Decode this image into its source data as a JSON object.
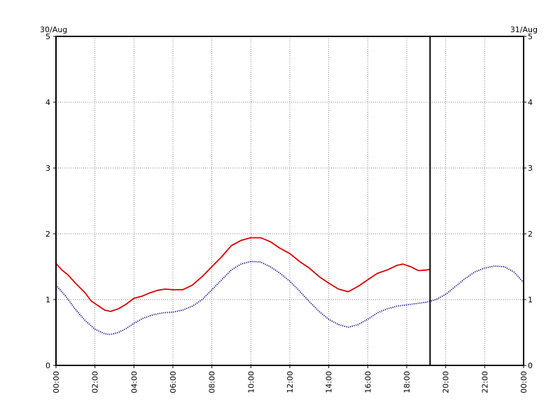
{
  "chart_data": {
    "type": "line",
    "title": "",
    "xlabel": "",
    "ylabel": "",
    "date_left": "30/Aug",
    "date_right": "31/Aug",
    "x_tick_labels": [
      "00:00",
      "02:00",
      "04:00",
      "06:00",
      "08:00",
      "10:00",
      "12:00",
      "14:00",
      "16:00",
      "18:00",
      "20:00",
      "22:00",
      "00:00"
    ],
    "y_tick_labels": [
      "0",
      "1",
      "2",
      "3",
      "4",
      "5"
    ],
    "xlim": [
      0,
      24
    ],
    "ylim": [
      0,
      5
    ],
    "grid": true,
    "current_time_marker": 19.2,
    "series": [
      {
        "color": "#dd0000",
        "style": "solid",
        "points": [
          [
            0.0,
            1.55
          ],
          [
            0.3,
            1.45
          ],
          [
            0.6,
            1.38
          ],
          [
            1.0,
            1.25
          ],
          [
            1.5,
            1.1
          ],
          [
            1.8,
            0.98
          ],
          [
            2.2,
            0.9
          ],
          [
            2.5,
            0.84
          ],
          [
            2.8,
            0.82
          ],
          [
            3.2,
            0.86
          ],
          [
            3.6,
            0.93
          ],
          [
            4.0,
            1.02
          ],
          [
            4.4,
            1.05
          ],
          [
            4.8,
            1.1
          ],
          [
            5.2,
            1.14
          ],
          [
            5.6,
            1.16
          ],
          [
            6.0,
            1.15
          ],
          [
            6.5,
            1.15
          ],
          [
            7.0,
            1.22
          ],
          [
            7.5,
            1.35
          ],
          [
            8.0,
            1.5
          ],
          [
            8.5,
            1.65
          ],
          [
            9.0,
            1.82
          ],
          [
            9.5,
            1.9
          ],
          [
            10.0,
            1.94
          ],
          [
            10.5,
            1.94
          ],
          [
            11.0,
            1.88
          ],
          [
            11.5,
            1.78
          ],
          [
            12.0,
            1.7
          ],
          [
            12.5,
            1.58
          ],
          [
            13.0,
            1.48
          ],
          [
            13.5,
            1.35
          ],
          [
            14.0,
            1.25
          ],
          [
            14.5,
            1.16
          ],
          [
            15.0,
            1.12
          ],
          [
            15.5,
            1.2
          ],
          [
            16.0,
            1.3
          ],
          [
            16.5,
            1.4
          ],
          [
            17.0,
            1.45
          ],
          [
            17.5,
            1.52
          ],
          [
            17.8,
            1.54
          ],
          [
            18.2,
            1.5
          ],
          [
            18.6,
            1.44
          ],
          [
            19.0,
            1.45
          ],
          [
            19.2,
            1.46
          ]
        ]
      },
      {
        "color": "#00008b",
        "style": "dotted",
        "points": [
          [
            0.0,
            1.22
          ],
          [
            0.5,
            1.05
          ],
          [
            1.0,
            0.85
          ],
          [
            1.5,
            0.68
          ],
          [
            2.0,
            0.55
          ],
          [
            2.5,
            0.48
          ],
          [
            2.8,
            0.47
          ],
          [
            3.2,
            0.5
          ],
          [
            3.6,
            0.56
          ],
          [
            4.0,
            0.64
          ],
          [
            4.5,
            0.72
          ],
          [
            5.0,
            0.77
          ],
          [
            5.5,
            0.8
          ],
          [
            6.0,
            0.81
          ],
          [
            6.5,
            0.84
          ],
          [
            7.0,
            0.9
          ],
          [
            7.5,
            1.0
          ],
          [
            8.0,
            1.15
          ],
          [
            8.5,
            1.3
          ],
          [
            9.0,
            1.45
          ],
          [
            9.5,
            1.54
          ],
          [
            10.0,
            1.58
          ],
          [
            10.5,
            1.57
          ],
          [
            11.0,
            1.5
          ],
          [
            11.5,
            1.4
          ],
          [
            12.0,
            1.28
          ],
          [
            12.5,
            1.13
          ],
          [
            13.0,
            0.97
          ],
          [
            13.5,
            0.82
          ],
          [
            14.0,
            0.7
          ],
          [
            14.5,
            0.62
          ],
          [
            15.0,
            0.58
          ],
          [
            15.5,
            0.62
          ],
          [
            16.0,
            0.7
          ],
          [
            16.5,
            0.8
          ],
          [
            17.0,
            0.86
          ],
          [
            17.5,
            0.9
          ],
          [
            18.0,
            0.92
          ],
          [
            18.5,
            0.94
          ],
          [
            19.0,
            0.96
          ],
          [
            19.5,
            1.0
          ],
          [
            20.0,
            1.08
          ],
          [
            20.5,
            1.2
          ],
          [
            21.0,
            1.32
          ],
          [
            21.5,
            1.42
          ],
          [
            22.0,
            1.48
          ],
          [
            22.5,
            1.51
          ],
          [
            23.0,
            1.5
          ],
          [
            23.5,
            1.42
          ],
          [
            24.0,
            1.26
          ]
        ]
      }
    ]
  }
}
